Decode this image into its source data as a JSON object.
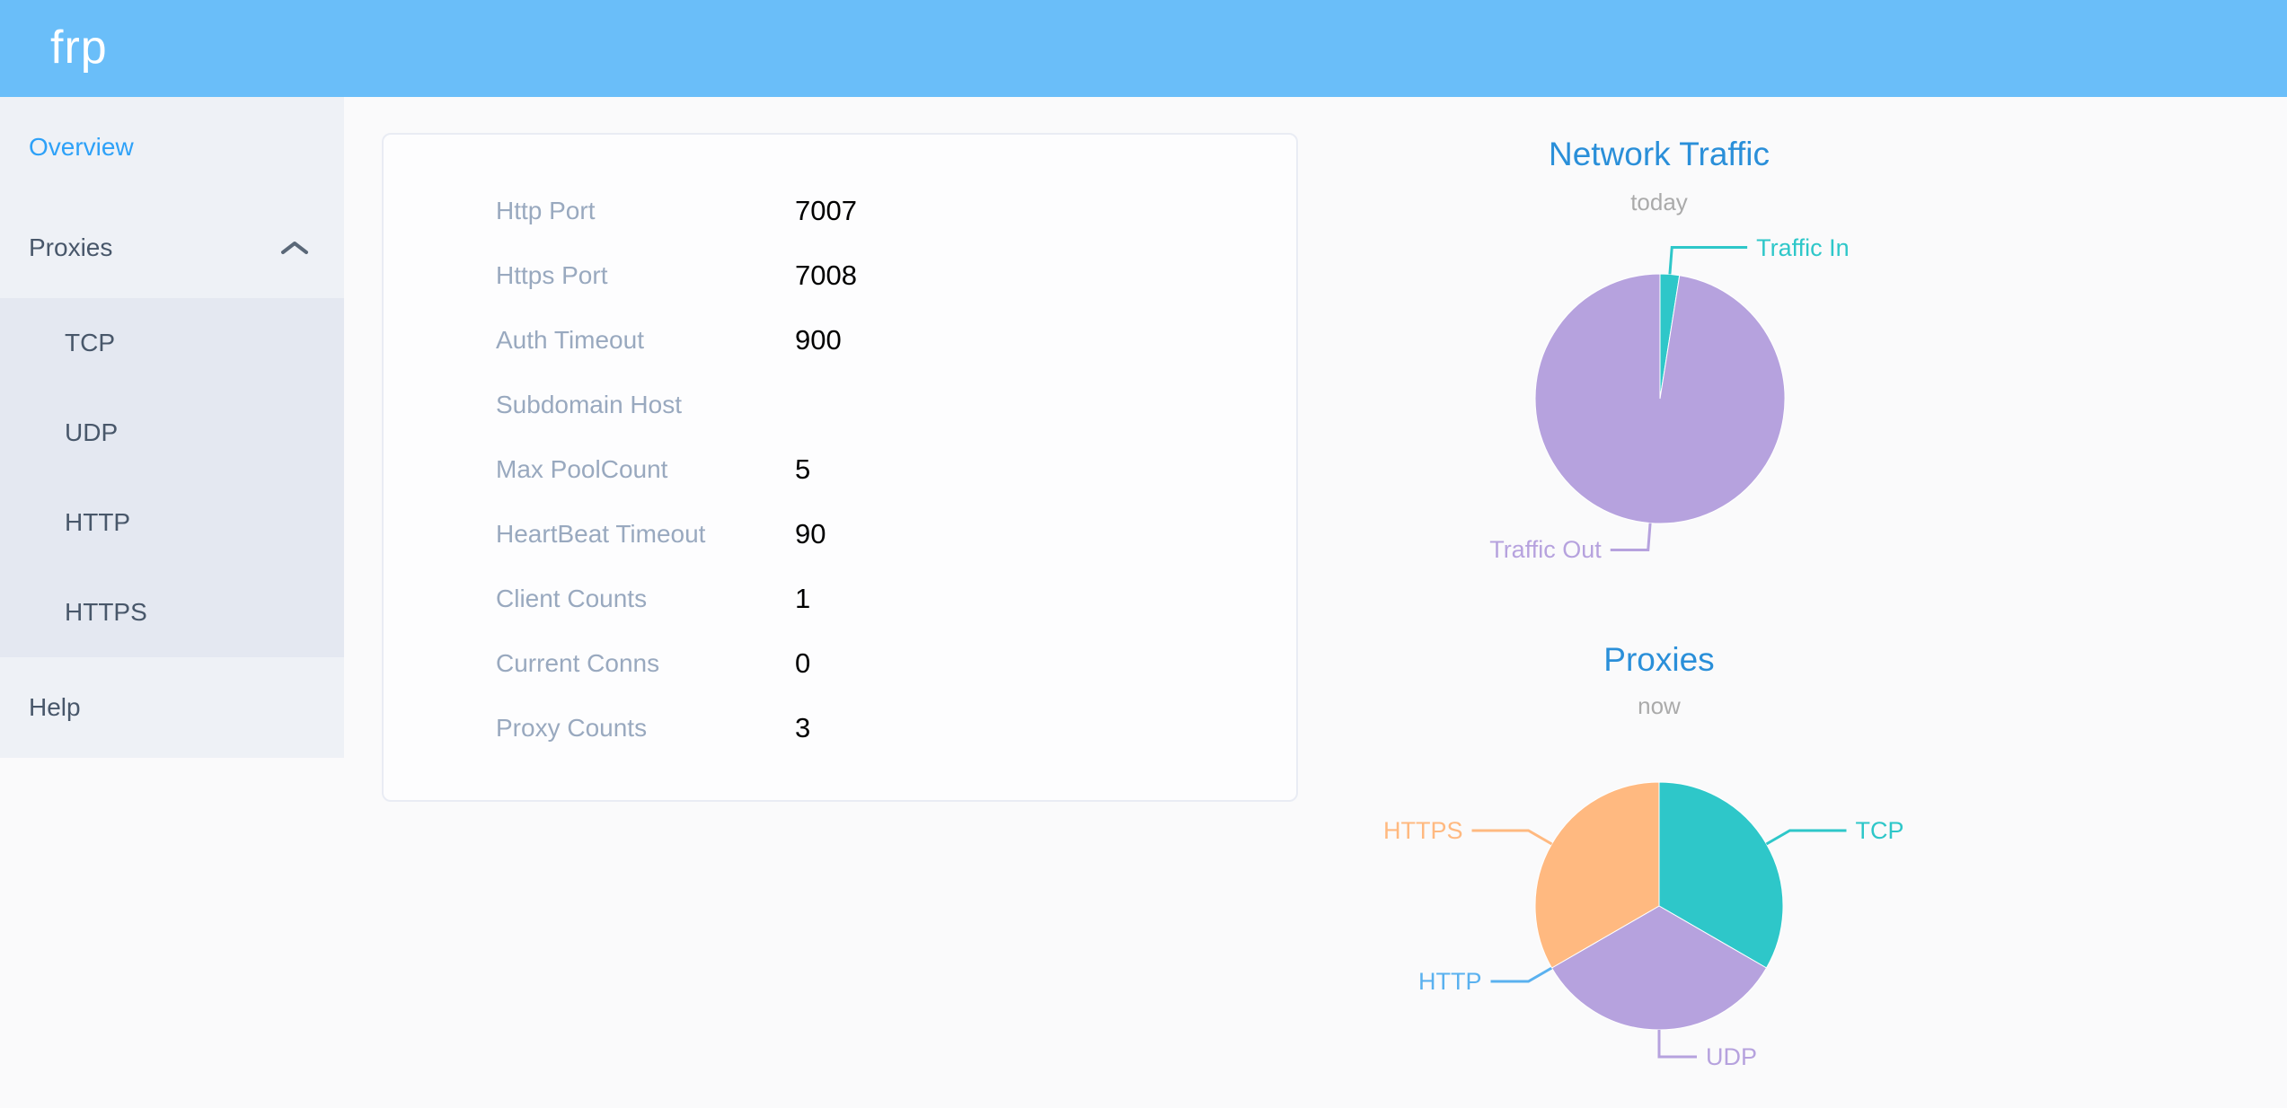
{
  "header": {
    "logo": "frp"
  },
  "sidebar": {
    "items": [
      {
        "label": "Overview",
        "active": true
      },
      {
        "label": "Proxies",
        "expanded": true
      },
      {
        "label": "Help"
      }
    ],
    "submenu": [
      "TCP",
      "UDP",
      "HTTP",
      "HTTPS"
    ]
  },
  "card": {
    "rows": [
      {
        "label": "Http Port",
        "value": "7007"
      },
      {
        "label": "Https Port",
        "value": "7008"
      },
      {
        "label": "Auth Timeout",
        "value": "900"
      },
      {
        "label": "Subdomain Host",
        "value": ""
      },
      {
        "label": "Max PoolCount",
        "value": "5"
      },
      {
        "label": "HeartBeat Timeout",
        "value": "90"
      },
      {
        "label": "Client Counts",
        "value": "1"
      },
      {
        "label": "Current Conns",
        "value": "0"
      },
      {
        "label": "Proxy Counts",
        "value": "3"
      }
    ]
  },
  "chart_data": [
    {
      "type": "pie",
      "title": "Network Traffic",
      "subtitle": "today",
      "legend_position": "none",
      "labels_position": "outside-with-leader-lines",
      "values_unit": "percent-estimated-from-geometry",
      "slices": [
        {
          "label": "Traffic In",
          "value": 2.5,
          "color": "#2ec7c9"
        },
        {
          "label": "Traffic Out",
          "value": 97.5,
          "color": "#b6a2de"
        }
      ]
    },
    {
      "type": "pie",
      "title": "Proxies",
      "subtitle": "now",
      "legend_position": "none",
      "labels_position": "outside-with-leader-lines",
      "values_unit": "proxy-count",
      "slices": [
        {
          "label": "TCP",
          "value": 1,
          "color": "#2ec7c9"
        },
        {
          "label": "UDP",
          "value": 1,
          "color": "#b6a2de"
        },
        {
          "label": "HTTP",
          "value": 0,
          "color": "#5ab1ef"
        },
        {
          "label": "HTTPS",
          "value": 1,
          "color": "#ffb980"
        }
      ]
    }
  ],
  "colors": {
    "header_bg": "#6abef9",
    "sidebar_bg": "#eef1f6",
    "submenu_bg": "#e4e8f1",
    "sidebar_text": "#48576a",
    "sidebar_active": "#2da1f8",
    "card_label": "#99a9bf",
    "card_value": "#000000",
    "chart_title": "#2a8fd9",
    "chart_subtitle": "#aaaaaa"
  }
}
